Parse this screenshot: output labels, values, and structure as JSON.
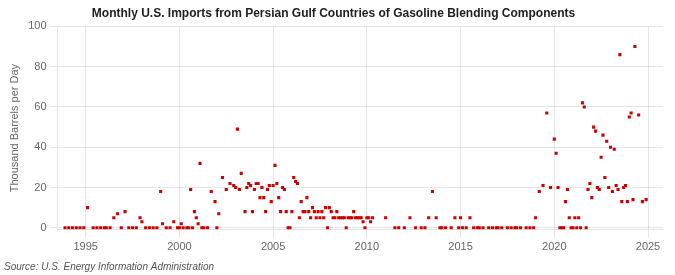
{
  "chart_data": {
    "type": "scatter",
    "title": "Monthly U.S. Imports from Persian Gulf Countries of Gasoline Blending Components",
    "ylabel": "Thousand Barrels per Day",
    "annotations": [
      "Source: U.S. Energy Information Administration"
    ],
    "color": "#cc0000",
    "marker": "square",
    "grid": true,
    "xlim": [
      1993.5,
      2025.8
    ],
    "ylim": [
      -1,
      100
    ],
    "xticks": [
      1995,
      2000,
      2005,
      2010,
      2015,
      2020,
      2025
    ],
    "yticks": [
      0,
      20,
      40,
      60,
      80,
      100
    ],
    "x": [
      1993.9,
      1994.1,
      1994.3,
      1994.5,
      1994.7,
      1994.9,
      1995.1,
      1995.4,
      1995.6,
      1995.8,
      1996.0,
      1996.1,
      1996.3,
      1996.5,
      1996.7,
      1996.9,
      1997.1,
      1997.3,
      1997.5,
      1997.7,
      1997.9,
      1998.0,
      1998.2,
      1998.4,
      1998.6,
      1998.8,
      1999.0,
      1999.1,
      1999.3,
      1999.5,
      1999.7,
      1999.9,
      2000.0,
      2000.1,
      2000.2,
      2000.4,
      2000.5,
      2000.6,
      2000.7,
      2000.8,
      2000.9,
      2001.0,
      2001.1,
      2001.2,
      2001.3,
      2001.5,
      2001.7,
      2001.9,
      2002.0,
      2002.1,
      2002.3,
      2002.5,
      2002.7,
      2002.9,
      2003.0,
      2003.1,
      2003.2,
      2003.3,
      2003.5,
      2003.6,
      2003.7,
      2003.8,
      2003.9,
      2004.0,
      2004.1,
      2004.2,
      2004.3,
      2004.4,
      2004.5,
      2004.6,
      2004.7,
      2004.8,
      2004.9,
      2005.0,
      2005.1,
      2005.2,
      2005.3,
      2005.4,
      2005.5,
      2005.6,
      2005.7,
      2005.8,
      2005.9,
      2006.0,
      2006.1,
      2006.2,
      2006.3,
      2006.4,
      2006.5,
      2006.6,
      2006.7,
      2006.8,
      2006.9,
      2007.0,
      2007.1,
      2007.2,
      2007.3,
      2007.4,
      2007.5,
      2007.6,
      2007.7,
      2007.8,
      2007.9,
      2008.0,
      2008.1,
      2008.2,
      2008.3,
      2008.4,
      2008.5,
      2008.6,
      2008.7,
      2008.8,
      2008.9,
      2009.0,
      2009.1,
      2009.2,
      2009.3,
      2009.4,
      2009.5,
      2009.6,
      2009.7,
      2009.8,
      2009.9,
      2010.0,
      2010.1,
      2010.2,
      2010.3,
      2011.0,
      2011.5,
      2011.7,
      2012.0,
      2012.3,
      2012.6,
      2012.9,
      2013.1,
      2013.3,
      2013.5,
      2013.7,
      2013.9,
      2014.0,
      2014.2,
      2014.5,
      2014.7,
      2014.9,
      2015.0,
      2015.1,
      2015.3,
      2015.5,
      2015.7,
      2015.9,
      2016.0,
      2016.2,
      2016.5,
      2016.7,
      2016.9,
      2017.0,
      2017.2,
      2017.5,
      2017.7,
      2017.9,
      2018.0,
      2018.2,
      2018.5,
      2018.7,
      2018.9,
      2019.0,
      2019.2,
      2019.4,
      2019.6,
      2019.8,
      2020.0,
      2020.1,
      2020.2,
      2020.3,
      2020.4,
      2020.5,
      2020.6,
      2020.7,
      2020.8,
      2020.9,
      2021.0,
      2021.1,
      2021.2,
      2021.3,
      2021.4,
      2021.5,
      2021.6,
      2021.7,
      2021.8,
      2021.9,
      2022.0,
      2022.1,
      2022.2,
      2022.3,
      2022.4,
      2022.5,
      2022.6,
      2022.7,
      2022.8,
      2022.9,
      2023.0,
      2023.1,
      2023.2,
      2023.3,
      2023.4,
      2023.5,
      2023.6,
      2023.7,
      2023.8,
      2023.9,
      2024.0,
      2024.1,
      2024.2,
      2024.3,
      2024.5,
      2024.7,
      2024.9
    ],
    "values": [
      0,
      0,
      0,
      0,
      0,
      0,
      10,
      0,
      0,
      0,
      0,
      0,
      0,
      5,
      7,
      0,
      8,
      0,
      0,
      0,
      5,
      3,
      0,
      0,
      0,
      0,
      18,
      2,
      0,
      0,
      3,
      0,
      0,
      2,
      0,
      0,
      0,
      19,
      0,
      8,
      5,
      2,
      32,
      0,
      0,
      0,
      18,
      13,
      0,
      7,
      25,
      19,
      22,
      21,
      20,
      49,
      19,
      27,
      8,
      20,
      22,
      21,
      8,
      19,
      22,
      22,
      15,
      20,
      15,
      8,
      19,
      21,
      13,
      21,
      31,
      22,
      15,
      8,
      20,
      19,
      8,
      0,
      0,
      8,
      25,
      23,
      22,
      5,
      13,
      8,
      8,
      15,
      8,
      5,
      10,
      8,
      5,
      8,
      5,
      8,
      5,
      10,
      0,
      10,
      8,
      5,
      5,
      8,
      5,
      5,
      5,
      5,
      0,
      5,
      5,
      5,
      8,
      5,
      5,
      5,
      5,
      3,
      0,
      5,
      5,
      3,
      5,
      5,
      0,
      0,
      0,
      5,
      0,
      0,
      0,
      5,
      18,
      5,
      0,
      0,
      0,
      0,
      5,
      0,
      5,
      0,
      0,
      5,
      0,
      0,
      0,
      0,
      0,
      0,
      0,
      0,
      0,
      0,
      0,
      0,
      0,
      0,
      0,
      0,
      0,
      5,
      18,
      21,
      57,
      20,
      44,
      37,
      20,
      0,
      0,
      0,
      13,
      19,
      5,
      0,
      0,
      5,
      0,
      5,
      0,
      62,
      60,
      0,
      19,
      22,
      15,
      50,
      48,
      20,
      19,
      35,
      46,
      25,
      43,
      20,
      40,
      18,
      39,
      21,
      19,
      86,
      13,
      20,
      21,
      13,
      55,
      57,
      14,
      90,
      56,
      13,
      14
    ]
  }
}
